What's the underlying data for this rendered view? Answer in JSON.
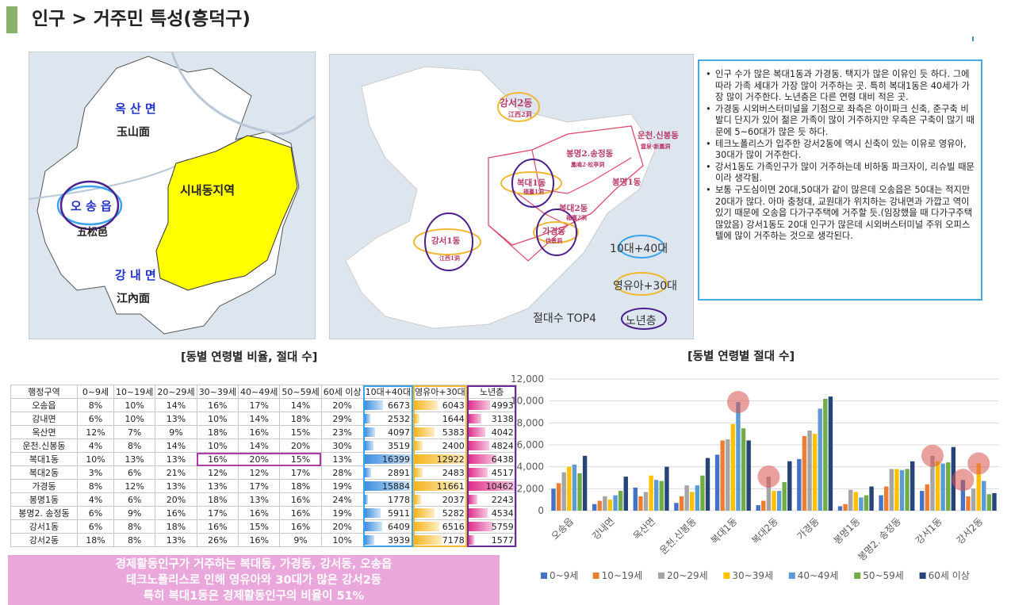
{
  "header": {
    "title": "인구 > 거주민 특성(흥덕구)"
  },
  "map1": {
    "labels": {
      "oksan": "옥 산 면",
      "oksan_hanja": "玉山面",
      "osong": "오 송 읍",
      "osong_hanja": "五松邑",
      "gangnae": "강 내 면",
      "gangnae_hanja": "江內面",
      "downtown": "시내동지역"
    },
    "colors": {
      "downtown": "#ffff00",
      "land": "#ffffff",
      "river": "#b9c7d6"
    }
  },
  "map2": {
    "labels": {
      "gangseo2": "강서2동",
      "gangseo2_hanja": "江西2洞",
      "unchen": "운천.신봉동",
      "unchen_hanja": "雲泉·新鳳洞",
      "bongmyeong": "봉명2.송정동",
      "bongmyeong_hanja": "鳳鳴2·松亭洞",
      "bokdae1": "복대1동",
      "bokdae1_hanja": "福臺1洞",
      "bongmyeong1": "봉명1동",
      "bokdae2": "복대2동",
      "bokdae2_hanja": "福臺2洞",
      "gagyeong": "가경동",
      "gagyeong_hanja": "佳景洞",
      "gangseo1": "강서1동",
      "gangseo1_hanja": "江西1洞"
    },
    "legend": {
      "blue": "10대+40대",
      "yellow": "영유아+30대",
      "purple": "노년층",
      "top4": "절대수 TOP4"
    },
    "colors": {
      "blue": "#3aa3ea",
      "yellow": "#f0b830",
      "purple": "#4b1f8c",
      "border": "#e04a6a"
    }
  },
  "notes": {
    "items": [
      "인구 수가 많은 복대1동과 가경동. 택지가 많은 이유인 듯 하다. 그에 따라 가족 세대가 가장 많이 거주하는 곳. 특히 복대1동은 40세가 가장 많이 거주한다. 노년층은 다른 연령 대비 적은 곳.",
      "가경동 시외버스터미널을 기점으로 좌측은 아이파크 신축, 준구축 비발디 단지가 있어 젊은 가족이 많이 거주하지만 우측은 구축이 많기 때문에 5~60대가 많은 듯 하다.",
      "테크노폴리스가 입주한 강서2동에 역시 신축이 있는 이유로 영유아, 30대가 많이 거주한다.",
      "강서1동도 가족인구가 많이 거주하는데 비하동 파크자이, 리슈빌 때문이라 생각됨.",
      "보통 구도심이면 20대,50대가 같이 많은데 오송읍은 50대는 적지만 20대가 많다. 아마 충청대, 교원대가 위치하는 강내면과 가깝고 역이 있기 때문에 오송읍 다가구주택에 거주할 듯.(임장했을 때 다가구주택 많았음) 강서1동도 20대 인구가 많은데 시외버스터미널 주위 오피스텔에 많이 거주하는 것으로 생각된다."
    ]
  },
  "table": {
    "title": "[동별 연령별 비율, 절대 수]",
    "headers": [
      "행정구역",
      "0~9세",
      "10~19세",
      "20~29세",
      "30~39세",
      "40~49세",
      "50~59세",
      "60세 이상",
      "10대+40대",
      "영유아+30대",
      "노년층"
    ],
    "rows": [
      [
        "오송읍",
        "8%",
        "10%",
        "14%",
        "16%",
        "17%",
        "14%",
        "20%",
        "6673",
        "6043",
        "4993"
      ],
      [
        "강내면",
        "6%",
        "10%",
        "13%",
        "10%",
        "14%",
        "18%",
        "29%",
        "2532",
        "1644",
        "3138"
      ],
      [
        "옥산면",
        "12%",
        "7%",
        "9%",
        "18%",
        "16%",
        "15%",
        "23%",
        "4097",
        "5383",
        "4042"
      ],
      [
        "운천.신봉동",
        "4%",
        "8%",
        "14%",
        "10%",
        "14%",
        "20%",
        "30%",
        "3519",
        "2400",
        "4824"
      ],
      [
        "복대1동",
        "10%",
        "13%",
        "13%",
        "16%",
        "20%",
        "15%",
        "13%",
        "16399",
        "12922",
        "6438"
      ],
      [
        "복대2동",
        "3%",
        "6%",
        "21%",
        "12%",
        "12%",
        "17%",
        "28%",
        "2891",
        "2483",
        "4517"
      ],
      [
        "가경동",
        "8%",
        "12%",
        "13%",
        "13%",
        "17%",
        "18%",
        "19%",
        "15884",
        "11661",
        "10462"
      ],
      [
        "봉명1동",
        "4%",
        "6%",
        "20%",
        "18%",
        "13%",
        "16%",
        "24%",
        "1778",
        "2037",
        "2243"
      ],
      [
        "봉명2. 송정동",
        "6%",
        "9%",
        "16%",
        "17%",
        "16%",
        "16%",
        "19%",
        "5911",
        "5282",
        "4534"
      ],
      [
        "강서1동",
        "6%",
        "8%",
        "18%",
        "16%",
        "15%",
        "16%",
        "20%",
        "6409",
        "6516",
        "5759"
      ],
      [
        "강서2동",
        "18%",
        "8%",
        "13%",
        "26%",
        "16%",
        "9%",
        "10%",
        "3939",
        "7178",
        "1577"
      ]
    ],
    "maxima": {
      "blue": 16399,
      "yellow": 12922,
      "pink": 10462
    },
    "colors": {
      "highlight": "#b03aa8",
      "blue_box": "#3aa3ea",
      "yellow_box": "#f0b830",
      "purple_box": "#6a2a9c"
    }
  },
  "summary": {
    "lines": [
      "경제활동인구가 거주하는 복대동, 가경동, 강서동, 오송읍",
      "테크노폴리스로 인해 영유아와 30대가 많은 강서2동",
      "특히 복대1동은 경제활동인구의 비율이 51%"
    ]
  },
  "chart_data": {
    "type": "bar",
    "title": "[동별 연령별 절대 수]",
    "categories": [
      "오송읍",
      "강내면",
      "옥산면",
      "운천.신봉동",
      "복대1동",
      "복대2동",
      "가경동",
      "봉명1동",
      "봉명2. 송정동",
      "강서1동",
      "강서2동"
    ],
    "series": [
      {
        "name": "0~9세",
        "color": "#4472c4",
        "values": [
          2000,
          600,
          2100,
          700,
          5100,
          500,
          4700,
          400,
          1400,
          1800,
          2800
        ]
      },
      {
        "name": "10~19세",
        "color": "#ed7d31",
        "values": [
          2500,
          900,
          1300,
          1300,
          6400,
          900,
          6800,
          600,
          2200,
          2400,
          1300
        ]
      },
      {
        "name": "20~29세",
        "color": "#a5a5a5",
        "values": [
          3500,
          1300,
          1700,
          2300,
          6500,
          3100,
          7300,
          1900,
          3800,
          5000,
          2000
        ]
      },
      {
        "name": "30~39세",
        "color": "#ffc000",
        "values": [
          4000,
          1000,
          3200,
          1700,
          7900,
          1800,
          7000,
          1700,
          3800,
          4500,
          4300
        ]
      },
      {
        "name": "40~49세",
        "color": "#5b9bd5",
        "values": [
          4200,
          1400,
          2800,
          2300,
          9900,
          1800,
          9300,
          1200,
          3700,
          4300,
          2700
        ]
      },
      {
        "name": "50~59세",
        "color": "#70ad47",
        "values": [
          3400,
          1800,
          2700,
          3200,
          7500,
          2600,
          10200,
          1400,
          3800,
          4400,
          1500
        ]
      },
      {
        "name": "60세 이상",
        "color": "#264478",
        "values": [
          5000,
          3100,
          4000,
          4800,
          6400,
          4500,
          10400,
          2200,
          4500,
          5800,
          1600
        ]
      }
    ],
    "ylim": [
      0,
      12000
    ],
    "yticks": [
      "0",
      "2,000",
      "4,000",
      "6,000",
      "8,000",
      "10,000",
      "12,000"
    ],
    "highlights": [
      {
        "category": "복대1동",
        "series": "40~49세"
      },
      {
        "category": "복대2동",
        "series": "20~29세"
      },
      {
        "category": "강서1동",
        "series": "20~29세"
      },
      {
        "category": "강서2동",
        "series": "0~9세"
      },
      {
        "category": "강서2동",
        "series": "30~39세"
      }
    ],
    "highlight_color": "#d9534f",
    "grid": true,
    "legend": "bottom"
  }
}
